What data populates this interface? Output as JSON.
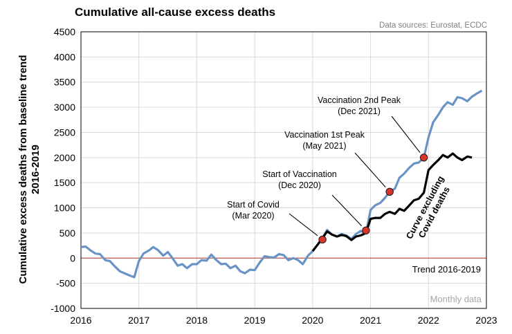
{
  "chart_data": {
    "type": "line",
    "title": "Cumulative all-cause excess deaths",
    "source": "Data sources: Eurostat, ECDC",
    "ylabel_line1": "Cumulative excess deaths from baseline trend",
    "ylabel_line2": "2016-2019",
    "xlim": [
      2016,
      2023
    ],
    "ylim": [
      -1000,
      4500
    ],
    "xticks": [
      "2016",
      "2017",
      "2018",
      "2019",
      "2020",
      "2021",
      "2022",
      "2023"
    ],
    "yticks": [
      "-1000",
      "-500",
      "0",
      "500",
      "1000",
      "1500",
      "2000",
      "2500",
      "3000",
      "3500",
      "4000",
      "4500"
    ],
    "grid": true,
    "frequency_note": "Monthly data",
    "trend_label": "Trend 2016-2019",
    "colors": {
      "all_cause": "#6a93c5",
      "excluding_covid": "#000000",
      "trend": "#c0504d",
      "marker": "#d9342b",
      "grid": "#d9d9d9"
    },
    "series": [
      {
        "id": "all_cause",
        "x": [
          2016.0,
          2016.08,
          2016.17,
          2016.25,
          2016.33,
          2016.42,
          2016.5,
          2016.58,
          2016.67,
          2016.75,
          2016.83,
          2016.92,
          2017.0,
          2017.08,
          2017.17,
          2017.25,
          2017.33,
          2017.42,
          2017.5,
          2017.58,
          2017.67,
          2017.75,
          2017.83,
          2017.92,
          2018.0,
          2018.08,
          2018.17,
          2018.25,
          2018.33,
          2018.42,
          2018.5,
          2018.58,
          2018.67,
          2018.75,
          2018.83,
          2018.92,
          2019.0,
          2019.08,
          2019.17,
          2019.25,
          2019.33,
          2019.42,
          2019.5,
          2019.58,
          2019.67,
          2019.75,
          2019.83,
          2019.92,
          2020.0,
          2020.08,
          2020.17,
          2020.25,
          2020.33,
          2020.42,
          2020.5,
          2020.58,
          2020.67,
          2020.75,
          2020.83,
          2020.92,
          2021.0,
          2021.08,
          2021.17,
          2021.25,
          2021.33,
          2021.42,
          2021.5,
          2021.58,
          2021.67,
          2021.75,
          2021.83,
          2021.92,
          2022.0,
          2022.08,
          2022.17,
          2022.25,
          2022.33,
          2022.42,
          2022.5,
          2022.58,
          2022.67,
          2022.75,
          2022.83,
          2022.92
        ],
        "y": [
          220,
          230,
          150,
          90,
          80,
          -40,
          -60,
          -160,
          -260,
          -300,
          -340,
          -380,
          -60,
          90,
          150,
          220,
          160,
          50,
          120,
          0,
          -150,
          -120,
          -200,
          -120,
          -120,
          -40,
          -50,
          70,
          -30,
          -120,
          -110,
          -200,
          -150,
          -260,
          -300,
          -230,
          -240,
          -100,
          40,
          20,
          10,
          80,
          60,
          -40,
          0,
          -40,
          -120,
          50,
          140,
          260,
          400,
          560,
          470,
          430,
          480,
          450,
          380,
          480,
          540,
          500,
          960,
          1050,
          1100,
          1200,
          1320,
          1380,
          1600,
          1680,
          1800,
          1880,
          1900,
          2000,
          2400,
          2700,
          2850,
          3000,
          3100,
          3050,
          3200,
          3180,
          3120,
          3210,
          3270,
          3330
        ]
      },
      {
        "id": "excluding_covid",
        "x": [
          2020.0,
          2020.08,
          2020.17,
          2020.25,
          2020.33,
          2020.42,
          2020.5,
          2020.58,
          2020.67,
          2020.75,
          2020.83,
          2020.92,
          2021.0,
          2021.08,
          2021.17,
          2021.25,
          2021.33,
          2021.42,
          2021.5,
          2021.58,
          2021.67,
          2021.75,
          2021.83,
          2021.92,
          2022.0,
          2022.08,
          2022.17,
          2022.25,
          2022.33,
          2022.42,
          2022.5,
          2022.58,
          2022.67,
          2022.75
        ],
        "y": [
          140,
          260,
          400,
          530,
          470,
          430,
          460,
          440,
          360,
          430,
          450,
          500,
          780,
          800,
          800,
          880,
          920,
          880,
          980,
          940,
          1050,
          1150,
          1180,
          1300,
          1750,
          1850,
          1950,
          2050,
          2000,
          2080,
          2000,
          1950,
          2020,
          2000
        ]
      }
    ],
    "events": [
      {
        "line1": "Start of Covid",
        "line2": "(Mar 2020)",
        "x": 2020.17,
        "y": 370
      },
      {
        "line1": "Start of Vaccination",
        "line2": "(Dec 2020)",
        "x": 2020.92,
        "y": 550
      },
      {
        "line1": "Vaccination 1st Peak",
        "line2": "(May 2021)",
        "x": 2021.33,
        "y": 1320
      },
      {
        "line1": "Vaccination 2nd Peak",
        "line2": "(Dec 2021)",
        "x": 2021.92,
        "y": 2000
      }
    ],
    "excl_label_line1": "Curve excluding",
    "excl_label_line2": "Covid deaths"
  }
}
